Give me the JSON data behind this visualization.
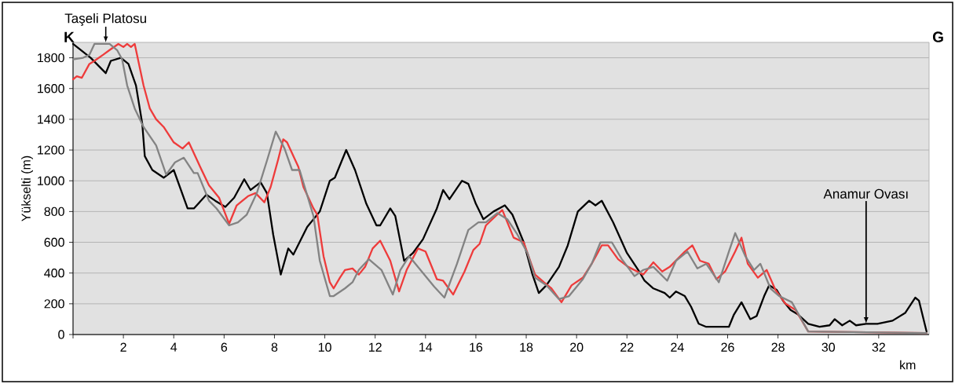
{
  "chart_data": {
    "type": "line",
    "ylabel": "Yükselti (m)",
    "xlabel": "km",
    "xlim": [
      0,
      34
    ],
    "ylim": [
      0,
      1900
    ],
    "xticks": [
      {
        "value": 0,
        "label": null
      },
      2,
      4,
      6,
      8,
      10,
      12,
      14,
      16,
      18,
      20,
      22,
      24,
      26,
      28,
      30,
      32
    ],
    "yticks": [
      0,
      200,
      400,
      600,
      800,
      1000,
      1200,
      1400,
      1600,
      1800
    ],
    "grid": "y",
    "line_style": "solid",
    "annotations": [
      "K",
      "G",
      {
        "text": "Taşeli Platosu",
        "x": 1.3,
        "y": 1900
      },
      {
        "text": "Anamur Ovası",
        "x": 31.5,
        "y": 70
      }
    ],
    "series": [
      {
        "color": "#000000",
        "x": [
          0,
          0.7,
          1.0,
          1.3,
          1.5,
          1.9,
          2.2,
          2.5,
          2.75,
          2.85,
          3.15,
          3.6,
          4.0,
          4.55,
          4.8,
          5.3,
          5.65,
          6.05,
          6.4,
          6.8,
          7.05,
          7.45,
          7.7,
          7.95,
          8.25,
          8.55,
          8.75,
          9.3,
          9.8,
          10.2,
          10.4,
          10.85,
          11.2,
          11.65,
          12.05,
          12.2,
          12.6,
          12.8,
          13.15,
          13.5,
          13.9,
          14.45,
          14.7,
          14.95,
          15.45,
          15.7,
          16.0,
          16.3,
          16.7,
          17.15,
          17.45,
          17.9,
          18.25,
          18.5,
          18.8,
          19.3,
          19.65,
          20.05,
          20.5,
          20.75,
          21.0,
          21.45,
          22.0,
          22.45,
          22.7,
          23.05,
          23.5,
          23.7,
          23.95,
          24.3,
          24.55,
          24.85,
          25.15,
          26.05,
          26.25,
          26.55,
          26.9,
          27.15,
          27.45,
          27.65,
          27.95,
          28.2,
          28.5,
          28.8,
          29.2,
          29.65,
          30.05,
          30.25,
          30.55,
          30.85,
          31.1,
          31.5,
          31.95,
          32.55,
          33.05,
          33.45,
          33.6,
          33.9
        ],
        "values": [
          1890,
          1800,
          1750,
          1700,
          1780,
          1800,
          1760,
          1620,
          1370,
          1160,
          1070,
          1020,
          1070,
          820,
          820,
          910,
          870,
          830,
          890,
          1010,
          940,
          990,
          920,
          650,
          390,
          560,
          520,
          700,
          800,
          1000,
          1020,
          1200,
          1070,
          850,
          710,
          710,
          820,
          770,
          480,
          530,
          620,
          820,
          940,
          880,
          1000,
          980,
          850,
          750,
          800,
          840,
          780,
          600,
          390,
          270,
          320,
          440,
          580,
          800,
          870,
          840,
          870,
          730,
          530,
          420,
          350,
          300,
          270,
          240,
          280,
          250,
          180,
          70,
          50,
          50,
          130,
          210,
          100,
          120,
          250,
          320,
          290,
          220,
          160,
          130,
          70,
          50,
          60,
          100,
          60,
          90,
          60,
          70,
          70,
          90,
          140,
          240,
          220,
          20
        ]
      },
      {
        "color": "#ee3b3b",
        "x": [
          0,
          0.15,
          0.35,
          0.65,
          0.85,
          1.2,
          1.45,
          1.8,
          2.0,
          2.15,
          2.3,
          2.45,
          2.8,
          3.05,
          3.3,
          3.6,
          4.0,
          4.35,
          4.6,
          5.05,
          5.4,
          5.8,
          6.2,
          6.5,
          6.95,
          7.25,
          7.6,
          7.85,
          8.15,
          8.35,
          8.5,
          8.95,
          9.15,
          9.55,
          9.7,
          9.95,
          10.2,
          10.35,
          10.6,
          10.8,
          11.1,
          11.35,
          11.6,
          11.9,
          12.2,
          12.6,
          12.95,
          13.25,
          13.7,
          14.0,
          14.45,
          14.7,
          15.1,
          15.55,
          15.9,
          16.15,
          16.4,
          16.85,
          17.05,
          17.5,
          17.9,
          18.35,
          18.7,
          19.0,
          19.4,
          19.8,
          20.25,
          20.6,
          21.0,
          21.25,
          21.65,
          22.05,
          22.65,
          23.05,
          23.4,
          23.7,
          24.0,
          24.3,
          24.6,
          24.9,
          25.25,
          25.55,
          25.9,
          26.3,
          26.55,
          26.8,
          27.2,
          27.55,
          27.9,
          28.3,
          28.7,
          29.2,
          33.9
        ],
        "values": [
          1660,
          1680,
          1670,
          1760,
          1780,
          1820,
          1850,
          1890,
          1870,
          1890,
          1870,
          1890,
          1620,
          1470,
          1400,
          1350,
          1250,
          1210,
          1250,
          1090,
          970,
          890,
          720,
          840,
          900,
          920,
          860,
          960,
          1140,
          1270,
          1250,
          1090,
          960,
          820,
          780,
          510,
          340,
          300,
          370,
          420,
          430,
          390,
          440,
          560,
          610,
          480,
          280,
          420,
          560,
          540,
          360,
          350,
          260,
          410,
          550,
          590,
          710,
          780,
          810,
          630,
          600,
          390,
          340,
          300,
          210,
          320,
          370,
          460,
          580,
          580,
          490,
          440,
          390,
          470,
          410,
          440,
          490,
          540,
          580,
          480,
          460,
          360,
          410,
          540,
          630,
          460,
          370,
          420,
          290,
          200,
          160,
          20,
          10
        ]
      },
      {
        "color": "#838383",
        "x": [
          0,
          0.4,
          0.65,
          0.85,
          1.2,
          1.45,
          1.75,
          1.95,
          2.15,
          2.45,
          2.8,
          3.3,
          3.7,
          4.05,
          4.4,
          4.8,
          4.95,
          5.4,
          5.7,
          6.2,
          6.55,
          6.9,
          7.3,
          7.7,
          8.05,
          8.4,
          8.7,
          9.0,
          9.55,
          9.8,
          10.2,
          10.35,
          10.8,
          11.1,
          11.35,
          11.75,
          12.25,
          12.7,
          13.0,
          13.35,
          13.85,
          14.35,
          14.75,
          15.25,
          15.7,
          16.1,
          16.4,
          16.85,
          17.25,
          17.65,
          18.05,
          18.35,
          18.8,
          19.3,
          19.7,
          20.25,
          20.6,
          20.95,
          21.4,
          21.8,
          22.3,
          22.65,
          23.05,
          23.6,
          23.95,
          24.4,
          24.8,
          25.15,
          25.65,
          26.05,
          26.3,
          26.7,
          27.05,
          27.3,
          27.7,
          28.05,
          28.55,
          29.2,
          33.9
        ],
        "values": [
          1790,
          1800,
          1820,
          1890,
          1890,
          1890,
          1850,
          1790,
          1620,
          1470,
          1350,
          1230,
          1040,
          1120,
          1150,
          1050,
          1050,
          870,
          820,
          710,
          730,
          780,
          920,
          1130,
          1320,
          1210,
          1070,
          1070,
          770,
          480,
          250,
          250,
          300,
          340,
          420,
          490,
          420,
          260,
          420,
          510,
          410,
          310,
          240,
          460,
          680,
          730,
          730,
          790,
          750,
          650,
          530,
          370,
          320,
          230,
          250,
          360,
          460,
          600,
          600,
          490,
          380,
          420,
          440,
          350,
          480,
          540,
          430,
          460,
          340,
          540,
          660,
          510,
          420,
          460,
          300,
          250,
          210,
          20,
          10
        ]
      }
    ]
  }
}
